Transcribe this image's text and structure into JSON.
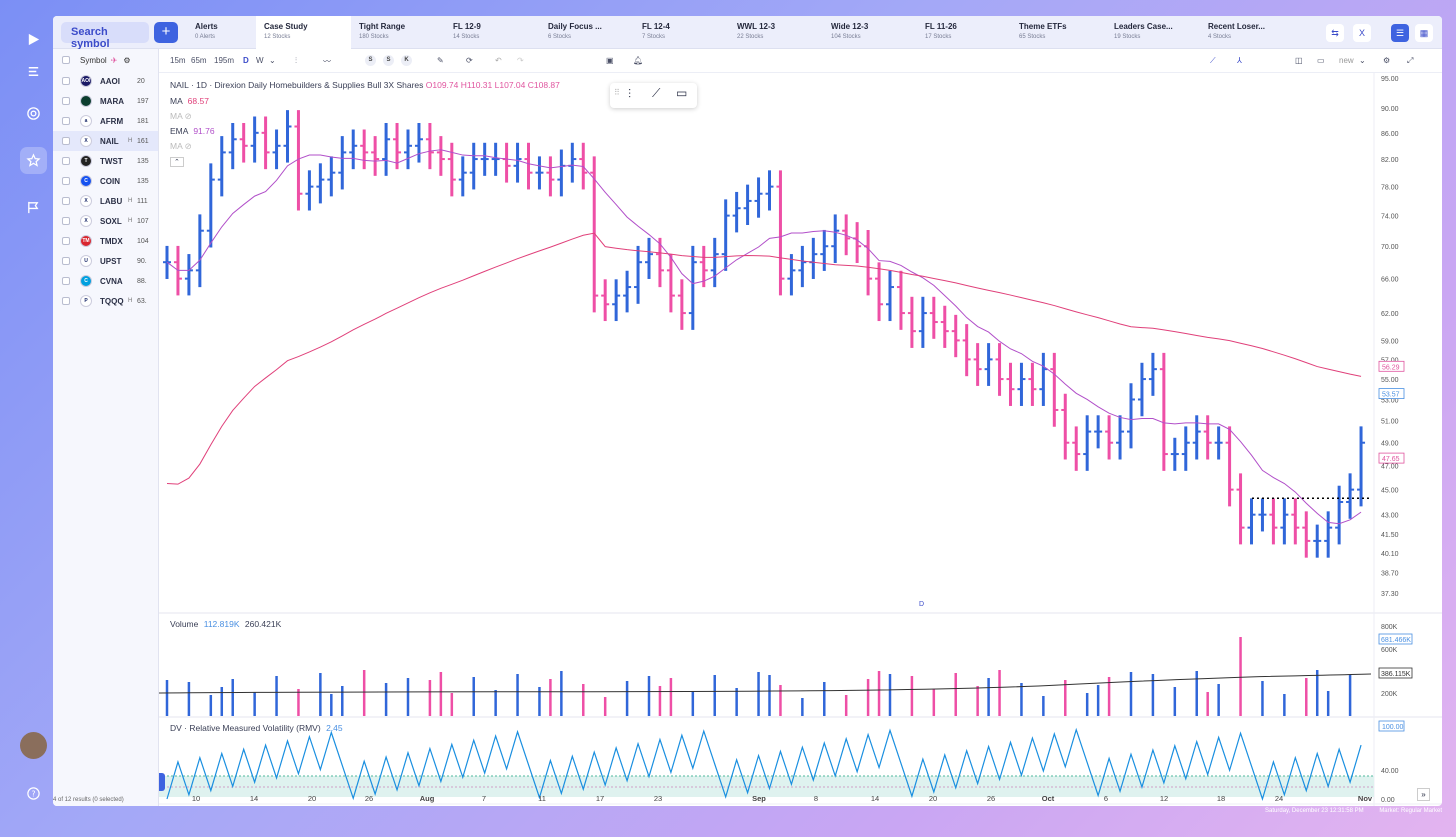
{
  "rail": {
    "icons": [
      "logo-icon",
      "menu-icon",
      "radar-icon",
      "star-icon",
      "flag-icon"
    ]
  },
  "topbar": {
    "search_placeholder": "Search symbol",
    "add_label": "+",
    "tabs": [
      {
        "title": "Alerts",
        "sub": "0 Alerts"
      },
      {
        "title": "Case Study",
        "sub": "12 Stocks"
      },
      {
        "title": "Tight Range",
        "sub": "180 Stocks"
      },
      {
        "title": "FL 12-9",
        "sub": "14 Stocks"
      },
      {
        "title": "Daily Focus ...",
        "sub": "6 Stocks"
      },
      {
        "title": "FL 12-4",
        "sub": "7 Stocks"
      },
      {
        "title": "WWL 12-3",
        "sub": "22 Stocks"
      },
      {
        "title": "Wide 12-3",
        "sub": "104 Stocks"
      },
      {
        "title": "FL 11-26",
        "sub": "17 Stocks"
      },
      {
        "title": "Theme ETFs",
        "sub": "65 Stocks"
      },
      {
        "title": "Leaders Case...",
        "sub": "19 Stocks"
      },
      {
        "title": "Recent Loser...",
        "sub": "4 Stocks"
      }
    ]
  },
  "watchlist": {
    "header": "Symbol",
    "rows": [
      {
        "symbol": "AAOI",
        "h": "",
        "price": "20",
        "color": "#1a1a66",
        "mark": "AOI"
      },
      {
        "symbol": "MARA",
        "h": "",
        "price": "197",
        "color": "#0b3d2e",
        "mark": ""
      },
      {
        "symbol": "AFRM",
        "h": "",
        "price": "181",
        "color": "#ffffff",
        "mark": "a"
      },
      {
        "symbol": "NAIL",
        "h": "H",
        "price": "161",
        "color": "#ffffff",
        "mark": "X"
      },
      {
        "symbol": "TWST",
        "h": "",
        "price": "135",
        "color": "#222222",
        "mark": "T"
      },
      {
        "symbol": "COIN",
        "h": "",
        "price": "135",
        "color": "#1652f0",
        "mark": "C"
      },
      {
        "symbol": "LABU",
        "h": "H",
        "price": "111",
        "color": "#ffffff",
        "mark": "X"
      },
      {
        "symbol": "SOXL",
        "h": "H",
        "price": "107",
        "color": "#ffffff",
        "mark": "X"
      },
      {
        "symbol": "TMDX",
        "h": "",
        "price": "104",
        "color": "#d9262f",
        "mark": "TM"
      },
      {
        "symbol": "UPST",
        "h": "",
        "price": "90.",
        "color": "#ffffff",
        "mark": "U"
      },
      {
        "symbol": "CVNA",
        "h": "",
        "price": "88.",
        "color": "#00a0df",
        "mark": "C"
      },
      {
        "symbol": "TQQQ",
        "h": "H",
        "price": "63.",
        "color": "#ffffff",
        "mark": "P"
      }
    ],
    "footer": "4 of 12 results (0 selected)"
  },
  "toolbar": {
    "intervals": [
      "15m",
      "65m",
      "195m",
      "D",
      "W"
    ],
    "circles": [
      "S",
      "S",
      "K"
    ],
    "layout_label": "new"
  },
  "chart": {
    "title": "NAIL · 1D · Direxion Daily Homebuilders & Supplies Bull 3X Shares",
    "open": "O109.74",
    "high": "H110.31",
    "low": "L107.04",
    "close": "C108.87",
    "ma1_label": "MA",
    "ma1_value": "68.57",
    "ma2_label": "MA",
    "ema_label": "EMA",
    "ema_value": "91.76",
    "ma3_label": "MA",
    "volume_label": "Volume",
    "volume_v1": "112.819K",
    "volume_v2": "260.421K",
    "rmv_label": "DV · Relative Measured Volatility (RMV)",
    "rmv_value": "2.45",
    "d_marker": "D",
    "price_ticks": [
      "95.00",
      "90.00",
      "86.00",
      "82.00",
      "78.00",
      "74.00",
      "70.00",
      "66.00",
      "62.00",
      "59.00",
      "57.00",
      "55.00",
      "53.00",
      "51.00",
      "49.00",
      "47.00",
      "45.00",
      "43.00",
      "41.50",
      "40.10",
      "38.70",
      "37.30"
    ],
    "price_tags": [
      {
        "v": "56.29",
        "color": "#e0559f"
      },
      {
        "v": "53.57",
        "color": "#4a90e2"
      },
      {
        "v": "47.65",
        "color": "#e0559f"
      }
    ],
    "vol_ticks": [
      "800K",
      "600K",
      "200K"
    ],
    "vol_tags": [
      {
        "v": "681.466K",
        "color": "#4a90e2"
      },
      {
        "v": "386.115K",
        "color": "#333333"
      }
    ],
    "rmv_ticks": [
      "40.00",
      "0.00"
    ],
    "rmv_tag": "100.00",
    "date_ticks": [
      "10",
      "14",
      "20",
      "26",
      "Aug",
      "7",
      "11",
      "17",
      "23",
      "Sep",
      "8",
      "14",
      "20",
      "26",
      "Oct",
      "6",
      "12",
      "18",
      "24",
      "Nov"
    ]
  },
  "status": {
    "datetime": "Saturday, December 23 12:31:58 PM",
    "market": "Market: Regular Market"
  },
  "colors": {
    "up": "#3066d9",
    "down": "#ee4fa6",
    "ma_long": "#e0407a",
    "ma_short": "#b14fc9",
    "rmv": "#1a8fe0"
  }
}
